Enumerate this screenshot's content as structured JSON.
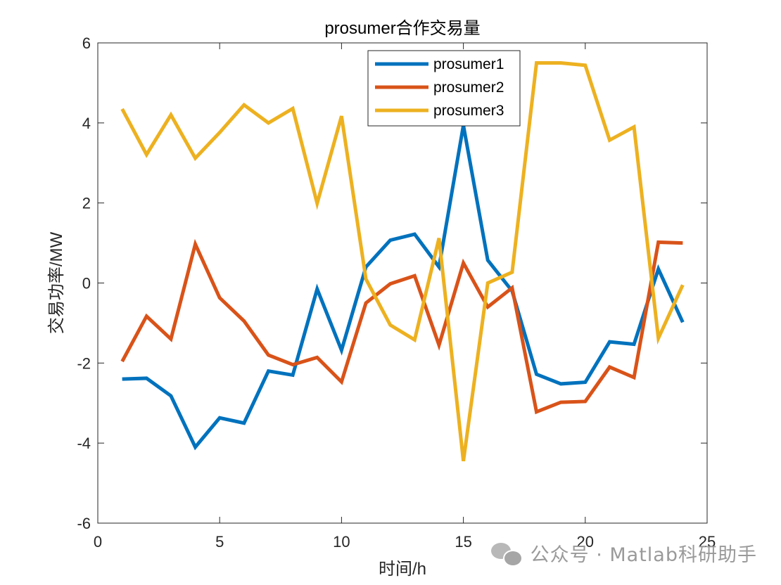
{
  "chart_data": {
    "type": "line",
    "title": "prosumer合作交易量",
    "xlabel": "时间/h",
    "ylabel": "交易功率/MW",
    "xlim": [
      0,
      25
    ],
    "ylim": [
      -6,
      6
    ],
    "xticks": [
      0,
      5,
      10,
      15,
      20,
      25
    ],
    "yticks": [
      -6,
      -4,
      -2,
      0,
      2,
      4,
      6
    ],
    "grid": false,
    "legend_position": "top-center",
    "x": [
      1,
      2,
      3,
      4,
      5,
      6,
      7,
      8,
      9,
      10,
      11,
      12,
      13,
      14,
      15,
      16,
      17,
      18,
      19,
      20,
      21,
      22,
      23,
      24
    ],
    "series": [
      {
        "name": "prosumer1",
        "color": "#0072BD",
        "values": [
          -2.4,
          -2.38,
          -2.82,
          -4.1,
          -3.37,
          -3.5,
          -2.2,
          -2.3,
          -0.15,
          -1.68,
          0.4,
          1.07,
          1.22,
          0.4,
          3.94,
          0.57,
          -0.2,
          -2.28,
          -2.52,
          -2.48,
          -1.47,
          -1.53,
          0.35,
          -0.98
        ]
      },
      {
        "name": "prosumer2",
        "color": "#D95319",
        "values": [
          -1.96,
          -0.83,
          -1.4,
          0.97,
          -0.37,
          -0.95,
          -1.8,
          -2.04,
          -1.86,
          -2.47,
          -0.5,
          -0.02,
          0.18,
          -1.55,
          0.5,
          -0.6,
          -0.12,
          -3.22,
          -2.98,
          -2.96,
          -2.1,
          -2.36,
          1.02,
          1.0
        ]
      },
      {
        "name": "prosumer3",
        "color": "#EDB120",
        "values": [
          4.35,
          3.21,
          4.2,
          3.12,
          3.76,
          4.45,
          4.0,
          4.36,
          1.99,
          4.17,
          0.1,
          -1.05,
          -1.42,
          1.12,
          -4.45,
          0.0,
          0.27,
          5.5,
          5.5,
          5.44,
          3.57,
          3.9,
          -1.38,
          -0.05
        ]
      }
    ]
  },
  "watermark": {
    "icon": "wechat-icon",
    "text": "公众号 · Matlab科研助手"
  }
}
